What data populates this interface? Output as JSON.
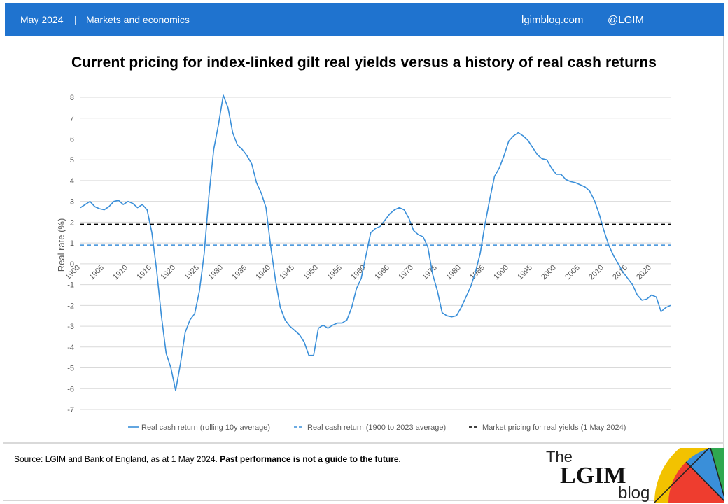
{
  "header": {
    "date": "May 2024",
    "separator": "|",
    "section": "Markets and economics",
    "site": "lgimblog.com",
    "handle": "@LGIM"
  },
  "footer": {
    "source": "Source: LGIM and Bank of England, as at 1 May 2024.",
    "disclaimer": "Past performance is not a guide to the future.",
    "logo_the": "The",
    "logo_main": "LGIM",
    "logo_blog": "blog"
  },
  "colors": {
    "brand_blue": "#1f73cf",
    "series_blue": "#3a8fd9",
    "average_line": "#3a8fd9",
    "market_line": "#000000"
  },
  "chart_data": {
    "type": "line",
    "title": "Current pricing for index-linked gilt real yields versus a history of real cash returns",
    "ylabel": "Real rate (%)",
    "xlabel": "",
    "ylim": [
      -7,
      8
    ],
    "xlim": [
      1900,
      2024
    ],
    "yticks": [
      -7,
      -6,
      -5,
      -4,
      -3,
      -2,
      -1,
      0,
      1,
      2,
      3,
      4,
      5,
      6,
      7,
      8
    ],
    "xticks": [
      1900,
      1905,
      1910,
      1915,
      1920,
      1925,
      1930,
      1935,
      1940,
      1945,
      1950,
      1955,
      1960,
      1965,
      1970,
      1975,
      1980,
      1985,
      1990,
      1995,
      2000,
      2005,
      2010,
      2015,
      2020
    ],
    "grid": "horizontal",
    "legend_position": "bottom",
    "series": [
      {
        "name": "Real cash return (rolling 10y average)",
        "style": "solid",
        "x": [
          1900,
          1901,
          1902,
          1903,
          1904,
          1905,
          1906,
          1907,
          1908,
          1909,
          1910,
          1911,
          1912,
          1913,
          1914,
          1915,
          1916,
          1917,
          1918,
          1919,
          1920,
          1921,
          1922,
          1923,
          1924,
          1925,
          1926,
          1927,
          1928,
          1929,
          1930,
          1931,
          1932,
          1933,
          1934,
          1935,
          1936,
          1937,
          1938,
          1939,
          1940,
          1941,
          1942,
          1943,
          1944,
          1945,
          1946,
          1947,
          1948,
          1949,
          1950,
          1951,
          1952,
          1953,
          1954,
          1955,
          1956,
          1957,
          1958,
          1959,
          1960,
          1961,
          1962,
          1963,
          1964,
          1965,
          1966,
          1967,
          1968,
          1969,
          1970,
          1971,
          1972,
          1973,
          1974,
          1975,
          1976,
          1977,
          1978,
          1979,
          1980,
          1981,
          1982,
          1983,
          1984,
          1985,
          1986,
          1987,
          1988,
          1989,
          1990,
          1991,
          1992,
          1993,
          1994,
          1995,
          1996,
          1997,
          1998,
          1999,
          2000,
          2001,
          2002,
          2003,
          2004,
          2005,
          2006,
          2007,
          2008,
          2009,
          2010,
          2011,
          2012,
          2013,
          2014,
          2015,
          2016,
          2017,
          2018,
          2019,
          2020,
          2021,
          2022,
          2023,
          2024
        ],
        "values": [
          2.7,
          2.85,
          3.0,
          2.75,
          2.65,
          2.6,
          2.75,
          3.0,
          3.05,
          2.85,
          3.0,
          2.9,
          2.7,
          2.85,
          2.6,
          1.5,
          -0.3,
          -2.5,
          -4.3,
          -5.0,
          -6.1,
          -4.8,
          -3.3,
          -2.7,
          -2.4,
          -1.3,
          0.5,
          3.3,
          5.5,
          6.7,
          8.1,
          7.5,
          6.3,
          5.7,
          5.5,
          5.2,
          4.8,
          3.9,
          3.4,
          2.7,
          0.8,
          -0.8,
          -2.1,
          -2.7,
          -3.0,
          -3.2,
          -3.4,
          -3.75,
          -4.4,
          -4.4,
          -3.1,
          -2.95,
          -3.1,
          -2.95,
          -2.85,
          -2.85,
          -2.7,
          -2.1,
          -1.2,
          -0.7,
          0.4,
          1.5,
          1.7,
          1.8,
          2.1,
          2.4,
          2.6,
          2.7,
          2.6,
          2.2,
          1.6,
          1.4,
          1.3,
          0.8,
          -0.5,
          -1.3,
          -2.35,
          -2.5,
          -2.55,
          -2.5,
          -2.1,
          -1.6,
          -1.1,
          -0.4,
          0.5,
          1.9,
          3.1,
          4.2,
          4.6,
          5.2,
          5.9,
          6.15,
          6.3,
          6.15,
          5.95,
          5.6,
          5.25,
          5.05,
          5.0,
          4.6,
          4.3,
          4.3,
          4.05,
          3.95,
          3.9,
          3.8,
          3.7,
          3.5,
          3.05,
          2.4,
          1.6,
          0.9,
          0.4,
          0.0,
          -0.4,
          -0.7,
          -1.0,
          -1.5,
          -1.75,
          -1.7,
          -1.5,
          -1.6,
          -2.3,
          -2.1,
          -2.0
        ]
      },
      {
        "name": "Real cash return (1900 to 2023 average)",
        "style": "dashed",
        "x": [
          1900,
          2024
        ],
        "values": [
          0.9,
          0.9
        ]
      },
      {
        "name": "Market pricing for real yields (1 May 2024)",
        "style": "dashed",
        "x": [
          1900,
          2024
        ],
        "values": [
          1.9,
          1.9
        ]
      }
    ]
  }
}
